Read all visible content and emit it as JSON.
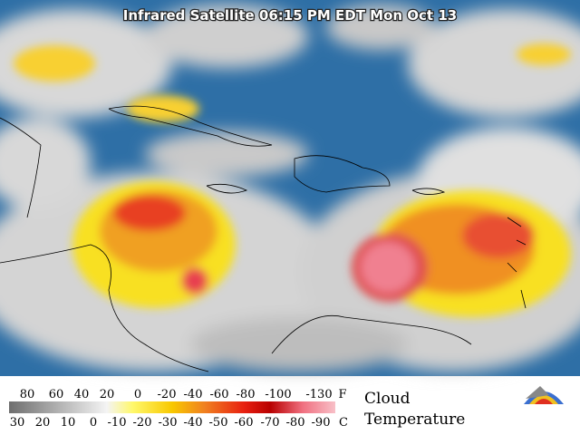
{
  "header": {
    "title": "Infrared Satellite 06:15 PM EDT Mon Oct 13"
  },
  "legend": {
    "fahrenheit": {
      "unit": "F",
      "labels": [
        80,
        60,
        40,
        20,
        0,
        -20,
        -40,
        -60,
        -80,
        -100,
        -130
      ]
    },
    "celsius": {
      "unit": "C",
      "labels": [
        30,
        20,
        10,
        0,
        -10,
        -20,
        -30,
        -40,
        -50,
        -60,
        -70,
        -80,
        -90
      ]
    },
    "title_line1": "Cloud",
    "title_line2": "Temperature"
  }
}
